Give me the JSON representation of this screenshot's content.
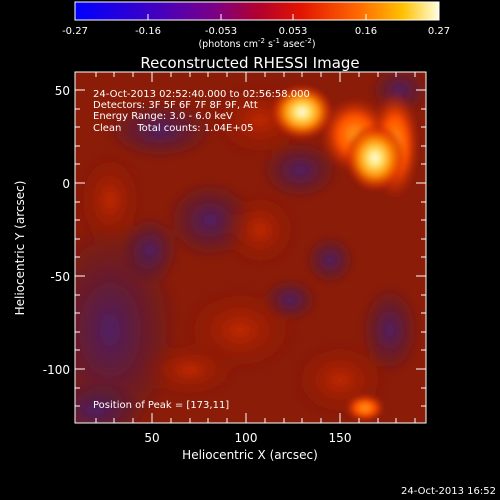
{
  "colorbar": {
    "ticks": [
      "-0.27",
      "-0.16",
      "-0.053",
      "0.053",
      "0.16",
      "0.27"
    ],
    "unit_line": "(photons cm⁻² s⁻¹ asec⁻²)",
    "unit_parts": {
      "a": "(photons cm",
      "e1": "-2",
      "b": " s",
      "e2": "-1",
      "c": " asec",
      "e3": "-2",
      "d": ")"
    }
  },
  "image": {
    "title": "Reconstructed RHESSI Image",
    "info_lines": [
      "24-Oct-2013 02:52:40.000 to 02:56:58.000",
      "Detectors: 3F 5F 6F 7F 8F 9F, Att",
      "Energy Range: 3.0 - 6.0 keV",
      "Clean     Total counts: 1.04E+05"
    ],
    "peak_label": "Position of Peak = [173,11]",
    "xlabel": "Heliocentric X (arcsec)",
    "ylabel": "Heliocentric Y (arcsec)",
    "x_ticks": [
      "50",
      "100",
      "150"
    ],
    "y_ticks": [
      "50",
      "0",
      "-50",
      "-100"
    ],
    "footer_timestamp": "24-Oct-2013 16:52"
  },
  "image_data": {
    "x_range_arcsec": [
      10,
      197
    ],
    "y_range_arcsec": [
      -130,
      57
    ],
    "value_range": [
      -0.27,
      0.27
    ],
    "sources": [
      {
        "x": 173,
        "y": 11,
        "strength": 0.27
      },
      {
        "x": 128,
        "y": 39,
        "strength": 0.24
      },
      {
        "x": 160,
        "y": 30,
        "strength": 0.2
      }
    ]
  }
}
